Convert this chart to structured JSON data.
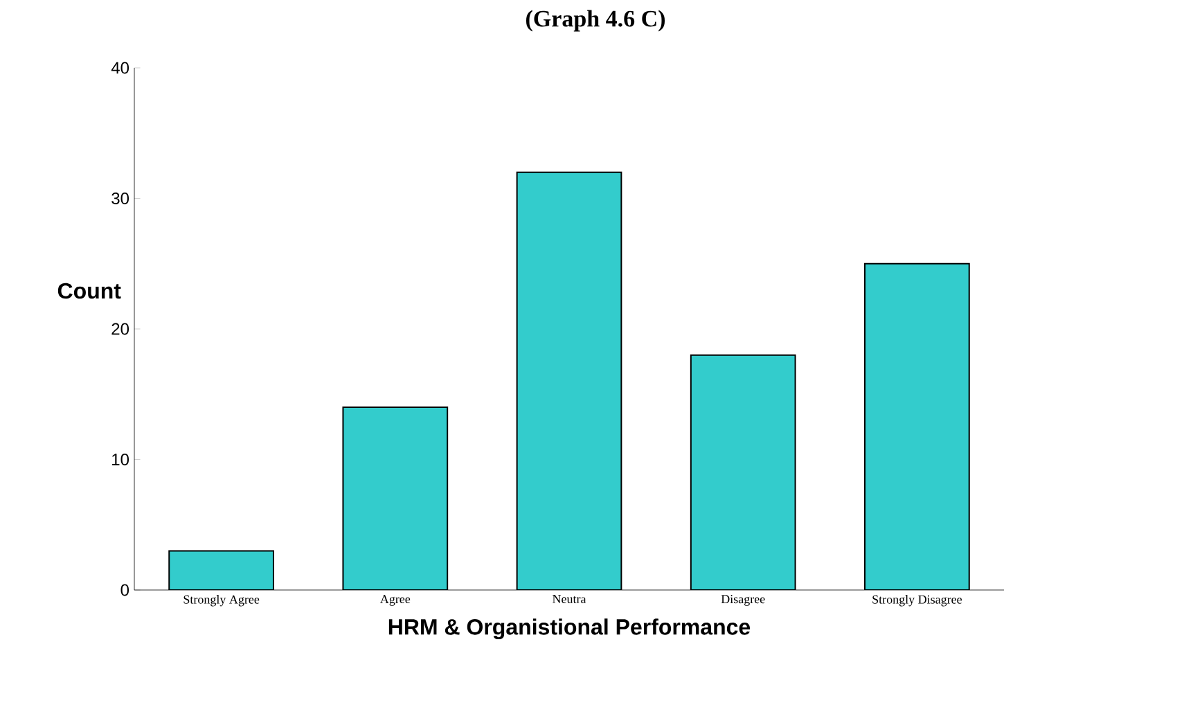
{
  "chart_data": {
    "type": "bar",
    "title": "(Graph 4.6 C)",
    "xlabel": "HRM & Organistional Performance",
    "ylabel": "Count",
    "categories": [
      "Strongly Agree",
      "Agree",
      "Neutra",
      "Disagree",
      "Strongly Disagree"
    ],
    "values": [
      3,
      14,
      32,
      18,
      25
    ],
    "color": "#33cccc",
    "ylim": [
      0,
      40
    ],
    "yticks": [
      0,
      10,
      20,
      30,
      40
    ],
    "grid": false
  }
}
